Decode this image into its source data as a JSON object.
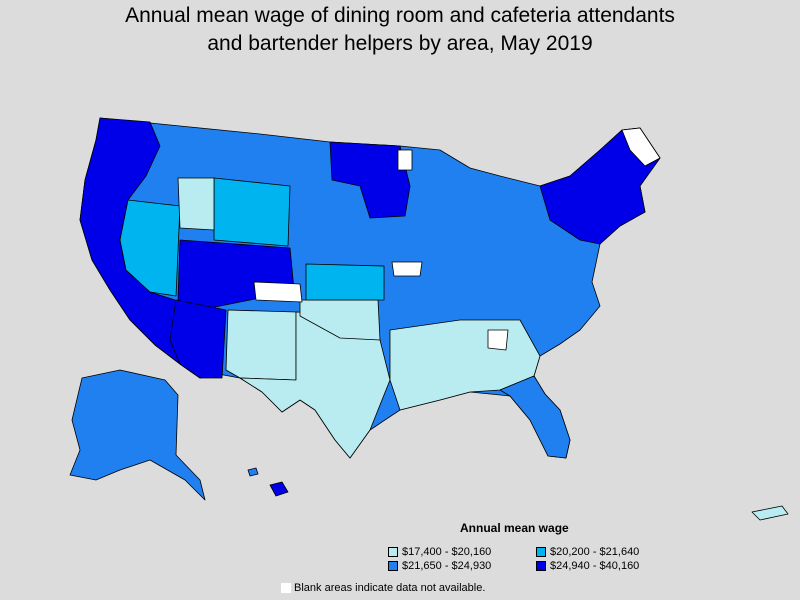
{
  "title_line1": "Annual mean wage of dining room and cafeteria attendants",
  "title_line2": "and bartender helpers by area, May 2019",
  "legend": {
    "title": "Annual mean wage",
    "items": [
      {
        "label": "$17,400 - $20,160",
        "color": "#b8ecf0"
      },
      {
        "label": "$20,200 - $21,640",
        "color": "#00b4f0"
      },
      {
        "label": "$21,650 - $24,930",
        "color": "#2080f0"
      },
      {
        "label": "$24,940 - $40,160",
        "color": "#0000e8"
      }
    ]
  },
  "note": {
    "label": "Blank areas indicate data not available.",
    "color": "#ffffff"
  }
}
